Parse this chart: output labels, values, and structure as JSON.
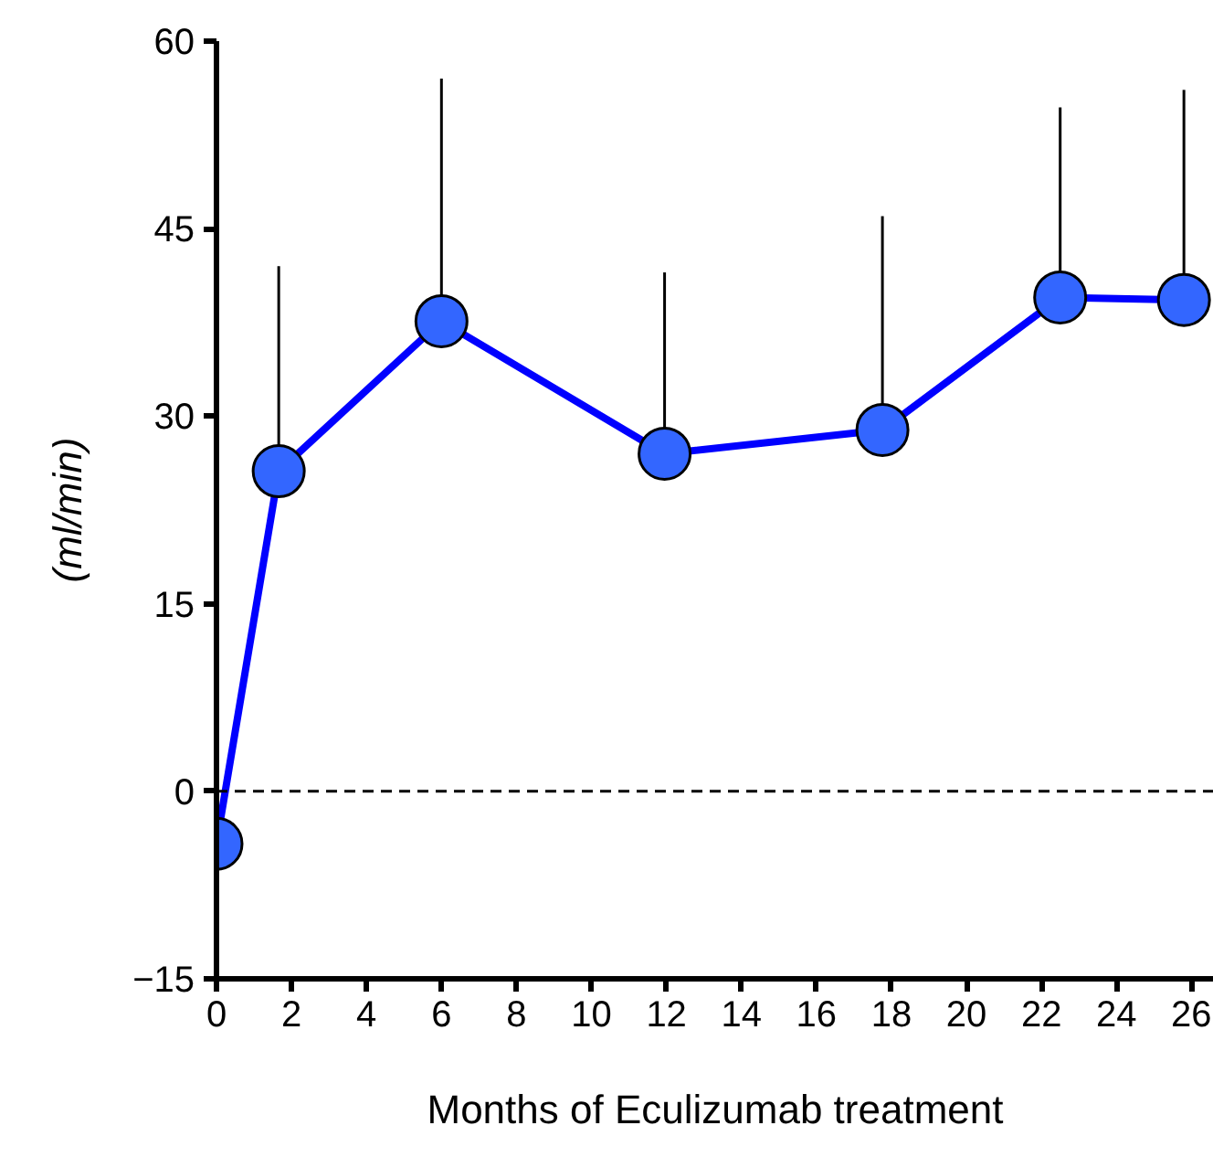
{
  "chart_data": {
    "type": "line",
    "xlabel": "Months of Eculizumab treatment",
    "ylabel": "(ml/min)",
    "x": [
      0,
      1.66,
      6.0,
      11.95,
      17.76,
      22.5,
      25.8
    ],
    "series": [
      {
        "color": "#0000ff",
        "values": [
          -4.2,
          25.6,
          37.6,
          27.0,
          28.9,
          39.5,
          39.3
        ],
        "errors": [
          null,
          [
            25.6,
            42.0
          ],
          [
            37.6,
            57.0
          ],
          [
            27.0,
            41.5
          ],
          [
            28.9,
            46.0
          ],
          [
            39.5,
            54.7
          ],
          [
            39.3,
            56.1
          ]
        ]
      }
    ],
    "marker": "circle",
    "line_style": "solid",
    "grid": false,
    "xlim": [
      0,
      26.6
    ],
    "xticks": [
      0,
      2,
      4,
      6,
      8,
      10,
      12,
      14,
      16,
      18,
      20,
      22,
      24,
      26
    ],
    "ylim": [
      -15,
      60
    ],
    "yticks": [
      -15,
      0,
      15,
      30,
      45,
      60
    ],
    "ref_lines": [
      {
        "axis": "y",
        "value": 0,
        "line_style": "dashed",
        "color": "#000000"
      }
    ]
  }
}
